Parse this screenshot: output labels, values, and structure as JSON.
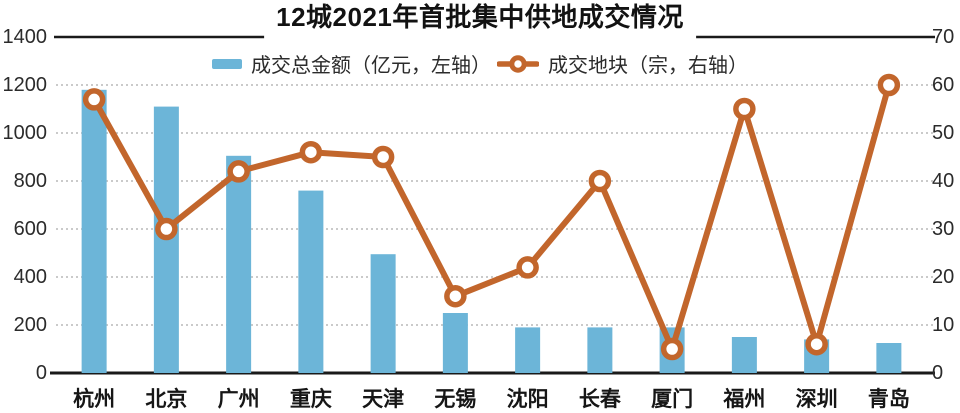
{
  "chart_data": {
    "type": "bar+line",
    "title": "12城2021年首批集中供地成交情况",
    "categories": [
      "杭州",
      "北京",
      "广州",
      "重庆",
      "天津",
      "无锡",
      "沈阳",
      "长春",
      "厦门",
      "福州",
      "深圳",
      "青岛"
    ],
    "series": [
      {
        "name": "成交总金额（亿元，左轴）",
        "type": "bar",
        "axis": "left",
        "color": "#6cb5d8",
        "values": [
          1180,
          1110,
          905,
          760,
          495,
          250,
          190,
          190,
          190,
          150,
          140,
          125
        ]
      },
      {
        "name": "成交地块（宗，右轴）",
        "type": "line",
        "axis": "right",
        "color": "#c2662c",
        "values": [
          57,
          30,
          42,
          46,
          45,
          16,
          22,
          40,
          5,
          55,
          6,
          60
        ]
      }
    ],
    "left_axis": {
      "min": 0,
      "max": 1400,
      "ticks": [
        1400,
        1200,
        1000,
        800,
        600,
        400,
        200,
        0
      ]
    },
    "right_axis": {
      "min": 0,
      "max": 70,
      "ticks": [
        70,
        60,
        50,
        40,
        30,
        20,
        10,
        0
      ]
    },
    "legend_position": "top-center",
    "grid": "horizontal dotted",
    "grid_color": "#b9b9b9",
    "axis_line_color": "#1a1a1a",
    "text_color": "#2b2b2b"
  }
}
